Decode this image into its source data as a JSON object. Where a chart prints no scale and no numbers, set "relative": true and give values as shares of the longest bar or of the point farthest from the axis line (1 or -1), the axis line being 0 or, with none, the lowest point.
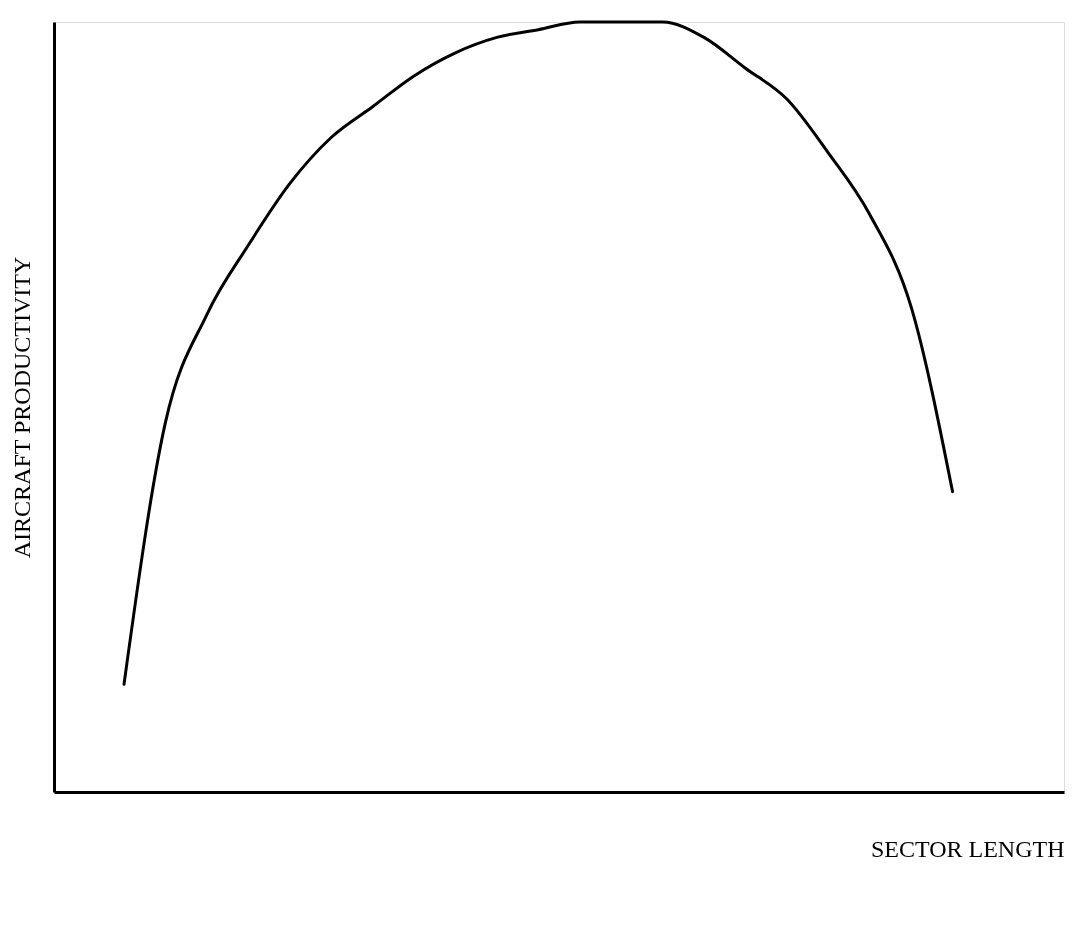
{
  "chart_data": {
    "type": "line",
    "relative": true,
    "xlabel": "SECTOR LENGTH",
    "ylabel": "AIRCRAFT PRODUCTIVITY",
    "categories": [
      null,
      null,
      null,
      null,
      null,
      null,
      null,
      null,
      null,
      null,
      null,
      null,
      null,
      null,
      null,
      null,
      null,
      null,
      null,
      null,
      null
    ],
    "series": [
      {
        "color": "#000000",
        "values": [
          0.14,
          0.48,
          0.62,
          0.71,
          0.79,
          0.85,
          0.89,
          0.93,
          0.96,
          0.98,
          0.99,
          1.0,
          1.0,
          1.0,
          0.98,
          0.94,
          0.9,
          0.83,
          0.75,
          0.63,
          0.39
        ]
      }
    ],
    "grid": false,
    "marker": "none",
    "line_style": "solid"
  }
}
